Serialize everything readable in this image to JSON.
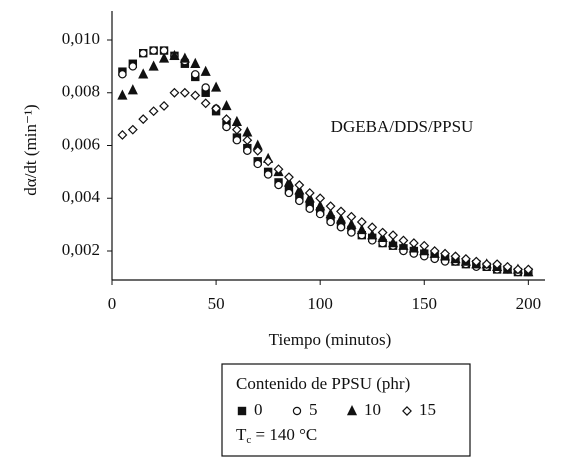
{
  "chart_data": {
    "type": "scatter",
    "x_label": "Tiempo (minutos)",
    "y_label": "dα/dt (min⁻¹)",
    "annotation": "DGEBA/DDS/PPSU",
    "legend_title": "Contenido de PPSU (phr)",
    "legend_note": {
      "symbol": "T",
      "subscript": "c",
      "text": " = 140 °C"
    },
    "xlim": [
      0,
      208
    ],
    "xticks": [
      0,
      50,
      100,
      150,
      200
    ],
    "ylim": [
      0.0009,
      0.0111
    ],
    "yticks": [
      {
        "value": 0.002,
        "label": "0,002"
      },
      {
        "value": 0.004,
        "label": "0,004"
      },
      {
        "value": 0.006,
        "label": "0,006"
      },
      {
        "value": 0.008,
        "label": "0,008"
      },
      {
        "value": 0.01,
        "label": "0,010"
      }
    ],
    "grid": false,
    "x": [
      5,
      10,
      15,
      20,
      25,
      30,
      35,
      40,
      45,
      50,
      55,
      60,
      65,
      70,
      75,
      80,
      85,
      90,
      95,
      100,
      105,
      110,
      115,
      120,
      125,
      130,
      135,
      140,
      145,
      150,
      155,
      160,
      165,
      170,
      175,
      180,
      185,
      190,
      195,
      200
    ],
    "series": [
      {
        "name": "0",
        "color": "#111111",
        "marker": "square",
        "filled": true,
        "values": [
          0.0088,
          0.0091,
          0.0095,
          0.0096,
          0.0096,
          0.0094,
          0.0091,
          0.0086,
          0.008,
          0.0073,
          0.0068,
          0.0063,
          0.0059,
          0.0054,
          0.005,
          0.0046,
          0.0043,
          0.004,
          0.0037,
          0.0035,
          0.0032,
          0.003,
          0.0028,
          0.0026,
          0.0025,
          0.0023,
          0.0022,
          0.0021,
          0.002,
          0.0019,
          0.0018,
          0.0017,
          0.0016,
          0.0015,
          0.0015,
          0.0014,
          0.0013,
          0.0013,
          0.0012,
          0.0012
        ]
      },
      {
        "name": "5",
        "color": "#111111",
        "marker": "circle",
        "filled": false,
        "values": [
          0.0087,
          0.009,
          0.0095,
          0.0096,
          0.0096,
          0.0094,
          0.0092,
          0.0087,
          0.0082,
          0.0074,
          0.0067,
          0.0062,
          0.0058,
          0.0053,
          0.0049,
          0.0045,
          0.0042,
          0.0039,
          0.0036,
          0.0034,
          0.0031,
          0.0029,
          0.0027,
          0.0026,
          0.0024,
          0.0023,
          0.0022,
          0.002,
          0.0019,
          0.0018,
          0.0017,
          0.0016,
          0.0016,
          0.0015,
          0.0014,
          0.0014,
          0.0013,
          0.0013,
          0.0012,
          0.0012
        ]
      },
      {
        "name": "10",
        "color": "#111111",
        "marker": "triangle",
        "filled": true,
        "values": [
          0.0079,
          0.0081,
          0.0087,
          0.009,
          0.0093,
          0.0094,
          0.0093,
          0.0091,
          0.0088,
          0.0082,
          0.0075,
          0.0069,
          0.0065,
          0.006,
          0.0055,
          0.005,
          0.0046,
          0.0043,
          0.004,
          0.0037,
          0.0034,
          0.0032,
          0.003,
          0.0028,
          0.0026,
          0.0025,
          0.0023,
          0.0022,
          0.0021,
          0.002,
          0.0019,
          0.0018,
          0.0017,
          0.0016,
          0.0015,
          0.0015,
          0.0014,
          0.0013,
          0.0013,
          0.0012
        ]
      },
      {
        "name": "15",
        "color": "#111111",
        "marker": "diamond",
        "filled": false,
        "values": [
          0.0064,
          0.0066,
          0.007,
          0.0073,
          0.0075,
          0.008,
          0.008,
          0.0079,
          0.0076,
          0.0074,
          0.007,
          0.0066,
          0.0062,
          0.0058,
          0.0054,
          0.0051,
          0.0048,
          0.0045,
          0.0042,
          0.004,
          0.0037,
          0.0035,
          0.0033,
          0.0031,
          0.0029,
          0.0027,
          0.0026,
          0.0024,
          0.0023,
          0.0022,
          0.002,
          0.0019,
          0.0018,
          0.0017,
          0.0016,
          0.0015,
          0.0015,
          0.0014,
          0.0013,
          0.0013
        ]
      }
    ]
  }
}
